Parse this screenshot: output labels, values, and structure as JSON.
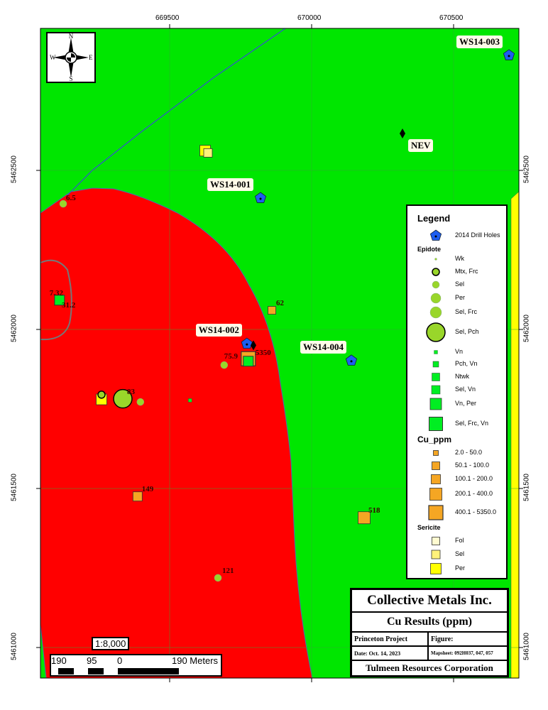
{
  "map": {
    "colors": {
      "red_unit": "#ff0000",
      "green_unit": "#00e600",
      "yellow_unit": "#ffff00",
      "stream": "#3355cc",
      "outline": "#777777",
      "drill_hole": "#1e5ef0",
      "cu": "#f5a623",
      "epidote": "#99d62a",
      "vein": "#00ee22",
      "sericite_sel": "#fff27a",
      "sericite_per": "#ffff00"
    },
    "x_ticks": [
      "669500",
      "670000",
      "670500"
    ],
    "y_ticks": [
      "5462500",
      "5462000",
      "5461500",
      "5461000"
    ],
    "x_tick_values": [
      669500,
      670000,
      670500
    ],
    "y_tick_values": [
      5462500,
      5462000,
      5461500,
      5461000
    ],
    "drill_holes": [
      {
        "label": "WS14-001",
        "e": 669820,
        "n": 5462413
      },
      {
        "label": "WS14-002",
        "e": 669772,
        "n": 5461955
      },
      {
        "label": "WS14-003",
        "e": 670695,
        "n": 5462862
      },
      {
        "label": "WS14-004",
        "e": 670140,
        "n": 5461902
      }
    ],
    "other_points": [
      {
        "label": "NEV",
        "e": 670320,
        "n": 5462616,
        "icon": "diamond"
      },
      {
        "label": "",
        "e": 669795,
        "n": 5461950,
        "icon": "diamond"
      }
    ],
    "samples": [
      {
        "label": "",
        "e": 669625,
        "n": 5462562,
        "kind": "sericite-per"
      },
      {
        "label": "",
        "e": 669635,
        "n": 5462555,
        "kind": "sericite-sel"
      },
      {
        "label": "6.5",
        "e": 669125,
        "n": 5462395,
        "kind": "epidote-sel"
      },
      {
        "label": "7.32",
        "e": 669112,
        "n": 5462092,
        "kind": "vein"
      },
      {
        "label": "31.2",
        "e": 669115,
        "n": 5462085,
        "kind": "none"
      },
      {
        "label": "62",
        "e": 669860,
        "n": 5462060,
        "kind": "cu-s"
      },
      {
        "label": "5350",
        "e": 669777,
        "n": 5461908,
        "kind": "cu-xl"
      },
      {
        "label": "",
        "e": 669777,
        "n": 5461900,
        "kind": "vein"
      },
      {
        "label": "75.9",
        "e": 669692,
        "n": 5461888,
        "kind": "epidote-sel"
      },
      {
        "label": "",
        "e": 669260,
        "n": 5461780,
        "kind": "sericite-per"
      },
      {
        "label": "",
        "e": 669260,
        "n": 5461795,
        "kind": "epidote-mtx"
      },
      {
        "label": "83",
        "e": 669335,
        "n": 5461782,
        "kind": "epidote-pch"
      },
      {
        "label": "",
        "e": 669397,
        "n": 5461772,
        "kind": "epidote-sel"
      },
      {
        "label": "",
        "e": 669572,
        "n": 5461777,
        "kind": "vein-s"
      },
      {
        "label": "149",
        "e": 669387,
        "n": 5461475,
        "kind": "cu-m"
      },
      {
        "label": "518",
        "e": 670185,
        "n": 5461408,
        "kind": "cu-l"
      },
      {
        "label": "121",
        "e": 669670,
        "n": 5461219,
        "kind": "epidote-sel"
      }
    ]
  },
  "compass": {
    "n": "N",
    "s": "S",
    "e": "E",
    "w": "W"
  },
  "scale": {
    "ratio": "1:8,000",
    "labels": [
      "190",
      "95",
      "0",
      "190 Meters"
    ]
  },
  "legend": {
    "title": "Legend",
    "drill_holes": "2014 Drill Holes",
    "epidote_title": "Epidote",
    "epidote": [
      "Wk",
      "Mtx, Frc",
      "Sel",
      "Per",
      "Sel, Frc",
      "Sel, Pch"
    ],
    "vein": [
      "Vn",
      "Pch, Vn",
      "Ntwk",
      "Sel, Vn",
      "Vn, Per",
      "Sel, Frc, Vn"
    ],
    "cu_title": "Cu_ppm",
    "cu": [
      "2.0 - 50.0",
      "50.1 - 100.0",
      "100.1 - 200.0",
      "200.1 - 400.0",
      "400.1 - 5350.0"
    ],
    "sericite_title": "Sericite",
    "sericite": [
      "Fol",
      "Sel",
      "Per"
    ]
  },
  "title_block": {
    "company": "Collective Metals Inc.",
    "title": "Cu Results (ppm)",
    "project": "Princeton Project",
    "figure": "Figure:",
    "date": "Date: Oct. 14, 2023",
    "mapsheet": "Mapsheet: 092H037, 047, 057",
    "client": "Tulmeen Resources Corporation"
  }
}
